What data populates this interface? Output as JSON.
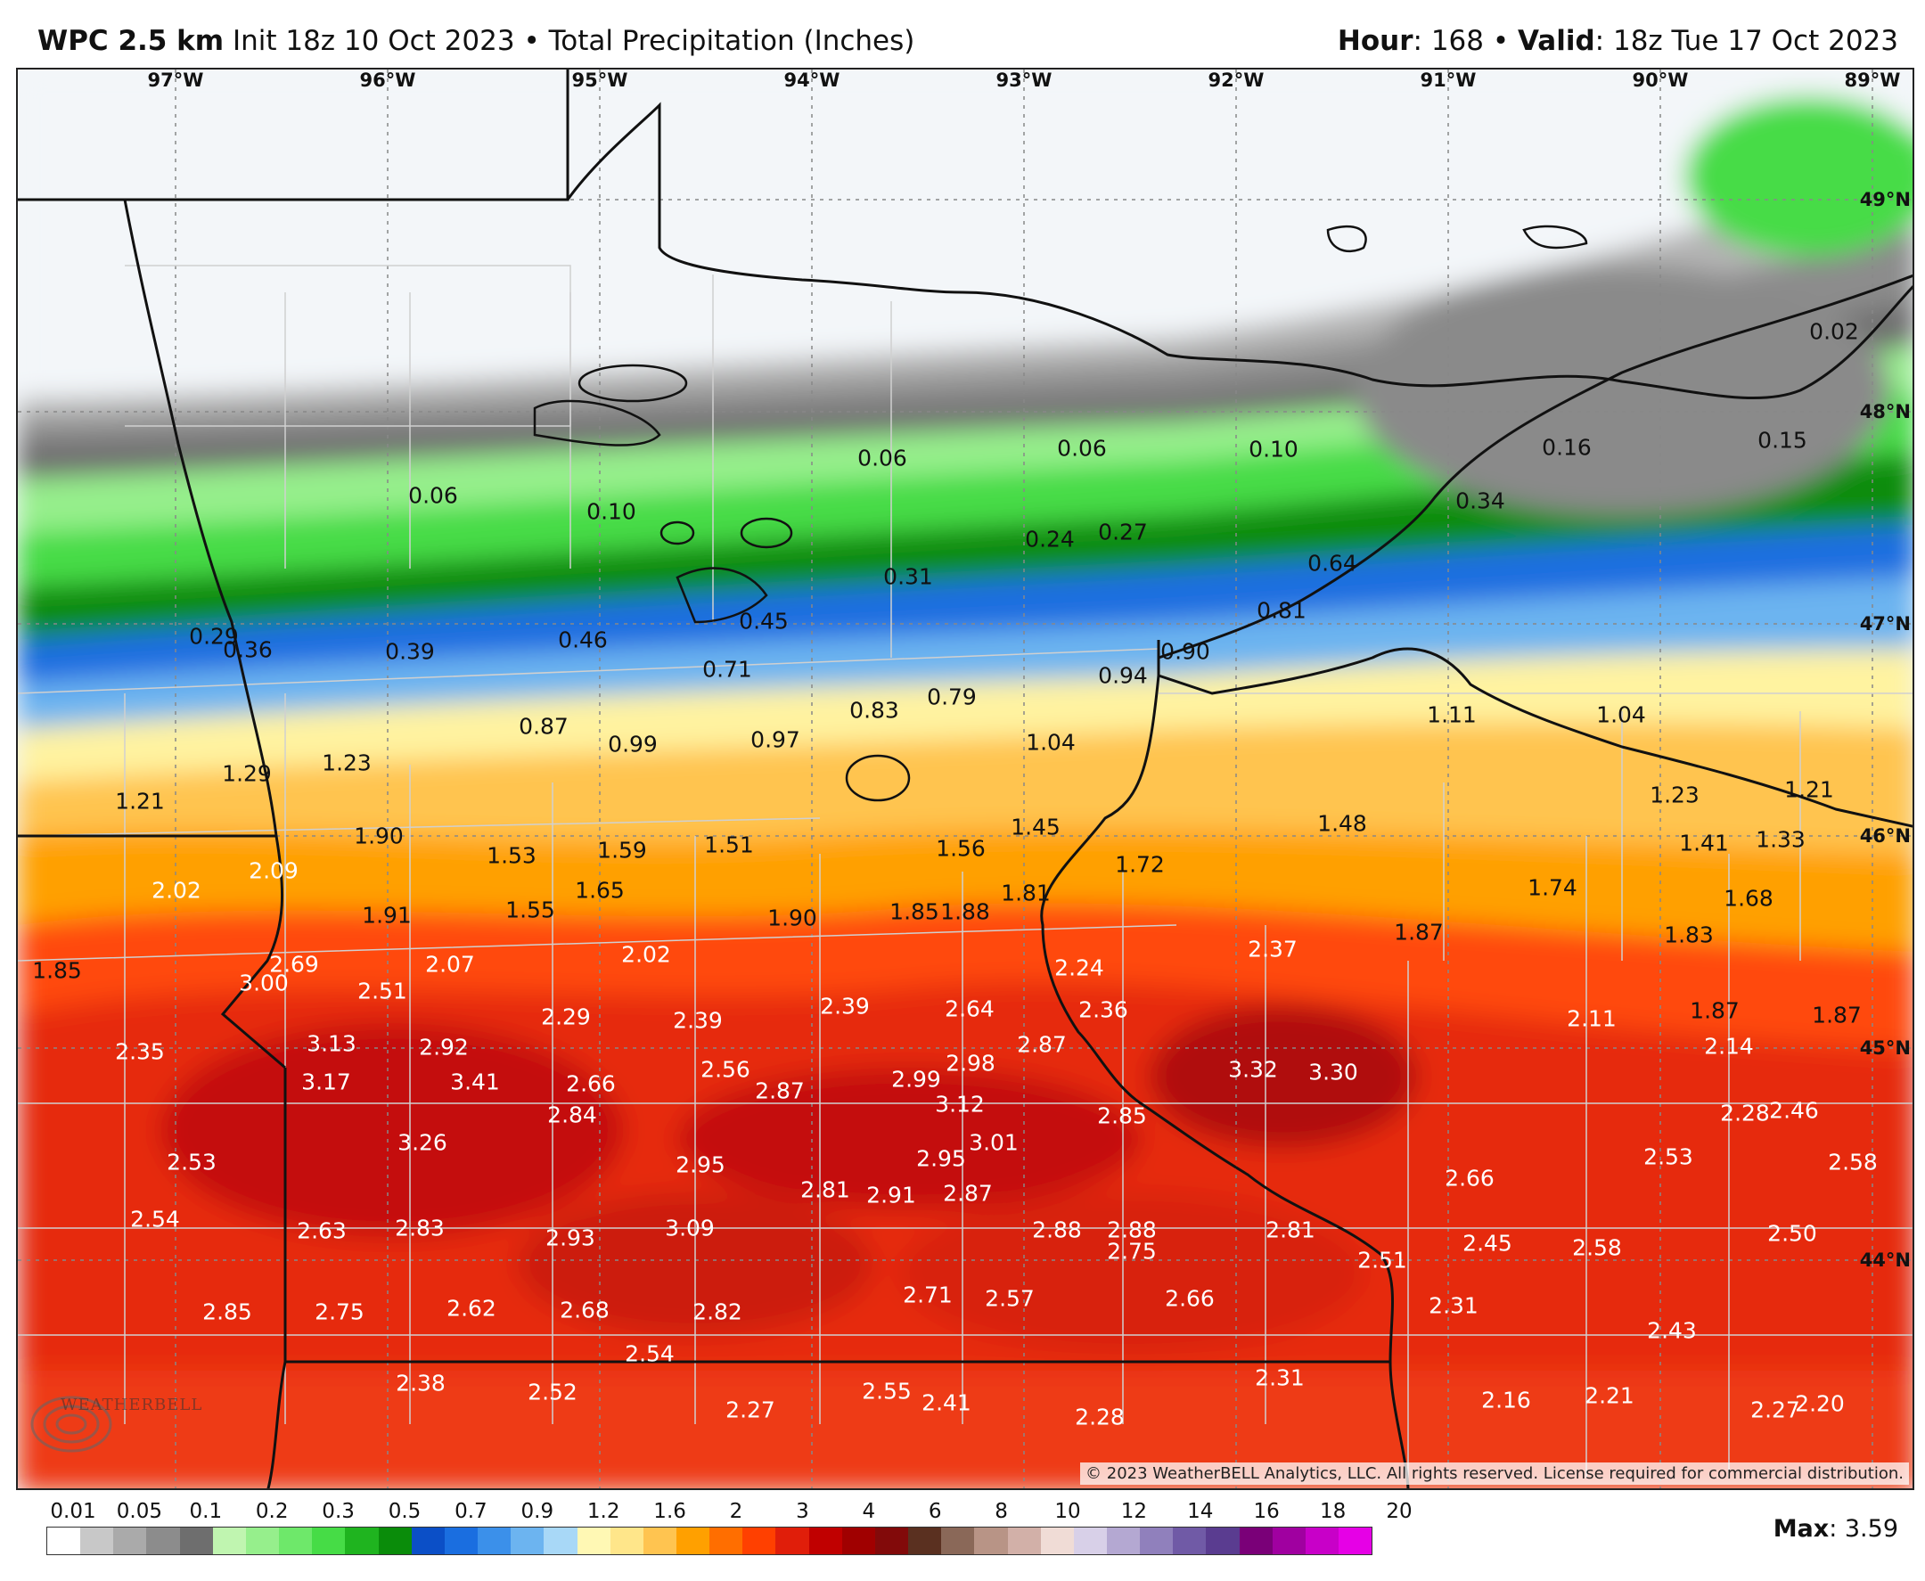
{
  "header": {
    "model": "WPC 2.5 km",
    "init": "Init 18z 10 Oct 2023",
    "sep": "•",
    "product": "Total Precipitation (Inches)",
    "hour_label": "Hour",
    "hour_value": ": 168",
    "valid_label": "Valid",
    "valid_value": ": 18z Tue 17 Oct 2023"
  },
  "map": {
    "lon_labels": [
      "97°W",
      "96°W",
      "95°W",
      "94°W",
      "93°W",
      "92°W",
      "91°W",
      "90°W",
      "89°W"
    ],
    "lat_labels": [
      "49°N",
      "48°N",
      "47°N",
      "46°N",
      "45°N",
      "44°N"
    ],
    "copyright": "© 2023 WeatherBELL Analytics, LLC. All rights reserved. License required for commercial distribution.",
    "logo_text": "WEATHERBELL",
    "values": [
      "0.02",
      "0.06",
      "0.06",
      "0.10",
      "0.06",
      "0.10",
      "0.16",
      "0.15",
      "0.34",
      "0.24",
      "0.27",
      "0.31",
      "0.45",
      "0.64",
      "0.29",
      "0.36",
      "0.39",
      "0.46",
      "0.81",
      "0.90",
      "0.71",
      "0.94",
      "0.79",
      "0.83",
      "1.11",
      "1.04",
      "0.87",
      "0.99",
      "0.97",
      "1.04",
      "1.23",
      "1.21",
      "1.29",
      "1.23",
      "1.21",
      "1.45",
      "1.48",
      "1.41",
      "1.33",
      "1.90",
      "1.53",
      "1.59",
      "1.51",
      "1.56",
      "1.72",
      "2.09",
      "1.65",
      "1.81",
      "1.74",
      "1.68",
      "2.02",
      "1.55",
      "1.91",
      "1.90",
      "1.85",
      "1.88",
      "2.37",
      "1.87",
      "1.83",
      "2.69",
      "2.07",
      "2.02",
      "2.24",
      "1.85",
      "3.00",
      "2.51",
      "2.29",
      "2.39",
      "2.39",
      "2.64",
      "2.36",
      "2.11",
      "1.87",
      "1.87",
      "2.35",
      "3.13",
      "2.92",
      "2.87",
      "3.32",
      "3.30",
      "2.14",
      "2.56",
      "2.98",
      "2.66",
      "2.99",
      "3.17",
      "3.41",
      "2.87",
      "3.12",
      "2.46",
      "2.84",
      "2.85",
      "2.28",
      "3.26",
      "3.01",
      "2.53",
      "2.95",
      "2.95",
      "2.53",
      "2.58",
      "2.66",
      "2.81",
      "2.91",
      "2.87",
      "2.54",
      "2.63",
      "2.83",
      "2.93",
      "3.09",
      "2.88",
      "2.88",
      "2.81",
      "2.45",
      "2.58",
      "2.50",
      "2.75",
      "2.51",
      "2.71",
      "2.57",
      "2.66",
      "2.85",
      "2.75",
      "2.62",
      "2.68",
      "2.82",
      "2.31",
      "2.43",
      "2.54",
      "2.31",
      "2.38",
      "2.52",
      "2.55",
      "2.41",
      "2.16",
      "2.21",
      "2.27",
      "2.28",
      "2.27",
      "2.20"
    ]
  },
  "legend": {
    "labels": [
      "0.01",
      "0.05",
      "0.1",
      "0.2",
      "0.3",
      "0.5",
      "0.7",
      "0.9",
      "1.2",
      "1.6",
      "2",
      "3",
      "4",
      "6",
      "8",
      "10",
      "12",
      "14",
      "16",
      "18",
      "20"
    ],
    "colors": [
      "#ffffff",
      "#c8c8c8",
      "#aaaaaa",
      "#8c8c8c",
      "#6e6e6e",
      "#c0f5b0",
      "#96ef8c",
      "#6ee86a",
      "#46dc46",
      "#1fb41f",
      "#0a8c0a",
      "#0b4fc7",
      "#1a6ee0",
      "#3b90ea",
      "#6cb4f0",
      "#a8d8f7",
      "#fff8b4",
      "#ffe68a",
      "#ffc450",
      "#ffa000",
      "#ff6e00",
      "#ff4000",
      "#e01e0a",
      "#c00000",
      "#a00000",
      "#820a0a",
      "#5a3020",
      "#8a6858",
      "#b89486",
      "#d2b0a8",
      "#f0dcd6",
      "#d8d0e8",
      "#b4a8d2",
      "#9080bc",
      "#705aa6",
      "#5a3c90",
      "#7a0078",
      "#a000a0",
      "#c800c8",
      "#e600e6"
    ]
  },
  "max_label": "Max",
  "max_value": ": 3.59"
}
